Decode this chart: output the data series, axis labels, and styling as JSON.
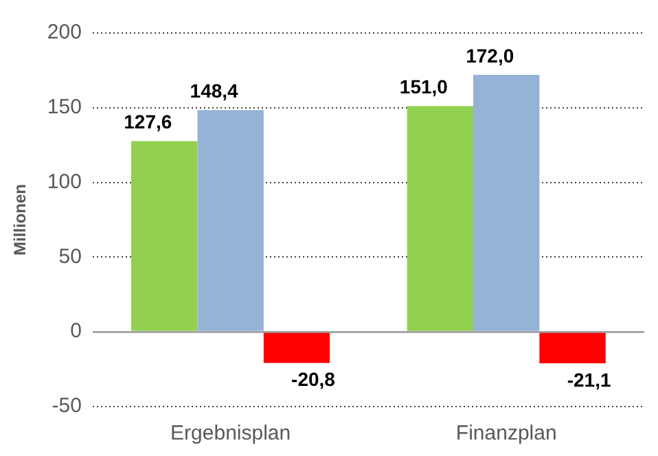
{
  "chart_data": {
    "type": "bar",
    "ylabel": "Millionen",
    "categories": [
      "Ergebnisplan",
      "Finanzplan"
    ],
    "series": [
      {
        "color": "#92d050",
        "values": [
          127.6,
          151.0
        ],
        "value_labels": [
          "127,6",
          "151,0"
        ]
      },
      {
        "color": "#95b3d7",
        "values": [
          148.4,
          172.0
        ],
        "value_labels": [
          "148,4",
          "172,0"
        ]
      },
      {
        "color": "#ff0000",
        "values": [
          -20.8,
          -21.1
        ],
        "value_labels": [
          "-20,8",
          "-21,1"
        ]
      }
    ],
    "ylim": [
      -50,
      200
    ],
    "yticks": [
      -50,
      0,
      50,
      100,
      150,
      200
    ],
    "grid": "y",
    "legend": false
  }
}
